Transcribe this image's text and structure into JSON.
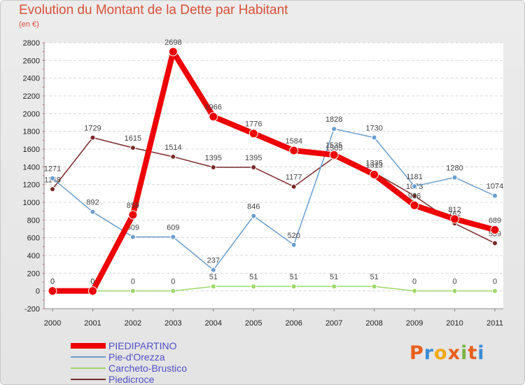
{
  "title": "Evolution du Montant de la Dette par Habitant",
  "subtitle": "(en €)",
  "logo": {
    "text": "Proxiti",
    "colors": [
      "#e8601c",
      "#3b8bd6",
      "#f2a900",
      "#e8601c",
      "#7cb342",
      "#e8601c",
      "#3b8bd6"
    ]
  },
  "chart_data": {
    "type": "line",
    "categories": [
      "2000",
      "2001",
      "2002",
      "2003",
      "2004",
      "2005",
      "2006",
      "2007",
      "2008",
      "2009",
      "2010",
      "2011"
    ],
    "ylim": [
      -200,
      2800
    ],
    "yticks": [
      -200,
      0,
      200,
      400,
      600,
      800,
      1000,
      1200,
      1400,
      1600,
      1800,
      2000,
      2200,
      2400,
      2600,
      2800
    ],
    "grid": "horizontal",
    "legend": "bottom-left",
    "series": [
      {
        "name": "Piedicroce",
        "color": "#7a2a2a",
        "width": 1.5,
        "values": [
          1148,
          1729,
          1615,
          1514,
          1395,
          1395,
          1177,
          1505,
          1335,
          1073,
          762,
          539
        ]
      },
      {
        "name": "Pie-d'Orezza",
        "color": "#6a9ecf",
        "width": 1.5,
        "values": [
          1271,
          892,
          609,
          609,
          237,
          846,
          520,
          1828,
          1730,
          1181,
          1280,
          1074
        ]
      },
      {
        "name": "Carcheto-Brustico",
        "color": "#9ed86a",
        "width": 1.5,
        "values": [
          0,
          0,
          0,
          0,
          51,
          51,
          51,
          51,
          51,
          0,
          0,
          0
        ]
      },
      {
        "name": "PIEDIPARTINO",
        "color": "#ee0000",
        "width": 8,
        "values": [
          0,
          0,
          859,
          2698,
          1966,
          1776,
          1584,
          1535,
          1313,
          966,
          812,
          689
        ]
      }
    ],
    "legend_order": [
      "PIEDIPARTINO",
      "Pie-d'Orezza",
      "Carcheto-Brustico",
      "Piedicroce"
    ]
  }
}
